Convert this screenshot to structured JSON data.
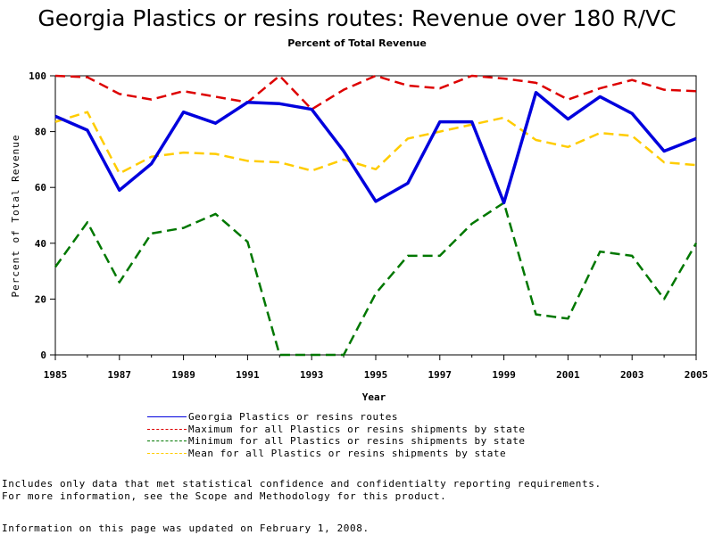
{
  "title": "Georgia Plastics or resins routes: Revenue over 180 R/VC",
  "subtitle": "Percent of Total Revenue",
  "chart_data": {
    "type": "line",
    "title": "Georgia Plastics or resins routes: Revenue over 180 R/VC",
    "subtitle": "Percent of Total Revenue",
    "xlabel": "Year",
    "ylabel": "Percent of Total Revenue",
    "xlim": [
      1985,
      2005
    ],
    "ylim": [
      0,
      100
    ],
    "x_ticks": [
      "1985",
      "1987",
      "1989",
      "1991",
      "1993",
      "1995",
      "1997",
      "1999",
      "2001",
      "2003",
      "2005"
    ],
    "y_ticks": [
      "0",
      "20",
      "40",
      "60",
      "80",
      "100"
    ],
    "x": [
      1985,
      1986,
      1987,
      1988,
      1989,
      1990,
      1991,
      1992,
      1993,
      1994,
      1995,
      1996,
      1997,
      1998,
      1999,
      2000,
      2001,
      2002,
      2003,
      2004,
      2005
    ],
    "series": [
      {
        "name": "Georgia Plastics or resins routes",
        "color": "#0000dd",
        "dash": "solid",
        "values": [
          85.5,
          80.5,
          59,
          68.5,
          87,
          83,
          90.5,
          90,
          88,
          73,
          55,
          61.5,
          83.5,
          83.5,
          54.5,
          94,
          84.5,
          92.5,
          86.5,
          73,
          77.5
        ]
      },
      {
        "name": "Maximum for all Plastics or resins shipments by state",
        "color": "#dd0000",
        "dash": "dashed",
        "values": [
          100,
          99.5,
          93.5,
          91.5,
          94.5,
          92.5,
          90.5,
          100,
          88,
          95,
          100,
          96.5,
          95.5,
          100,
          99,
          97.5,
          91.5,
          95.5,
          98.5,
          95,
          94.5
        ]
      },
      {
        "name": "Minimum for all Plastics or resins shipments by state",
        "color": "#007700",
        "dash": "dashed",
        "values": [
          31.5,
          47.5,
          26,
          43.5,
          45.5,
          50.5,
          40.5,
          0,
          0,
          0,
          22,
          35.5,
          35.5,
          47,
          54.5,
          14.5,
          13,
          37,
          35.5,
          20,
          40
        ]
      },
      {
        "name": "Mean for all Plastics or resins shipments by state",
        "color": "#ffcc00",
        "dash": "dashed",
        "values": [
          83.5,
          87,
          65,
          71,
          72.5,
          72,
          69.5,
          69,
          66,
          70,
          66.5,
          77.5,
          80,
          82.5,
          85,
          77,
          74.5,
          79.5,
          78.5,
          69,
          68
        ]
      }
    ],
    "grid": false,
    "legend_position": "bottom"
  },
  "notes": [
    "Includes only data that met statistical confidence and confidentialty reporting requirements.",
    "For more information, see the Scope and Methodology for this product."
  ],
  "updated": "Information on this page was updated on February 1, 2008."
}
